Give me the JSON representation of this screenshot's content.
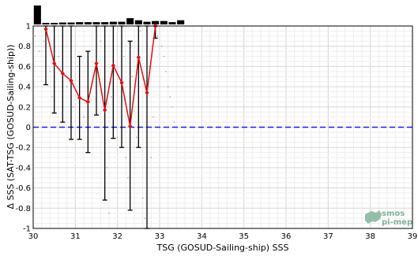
{
  "chart_data": {
    "type": "line",
    "xlabel": "TSG (GOSUD-Sailing-ship) SSS",
    "ylabel": "Δ SSS (SAT-TSG (GOSUD-Sailing-ship))",
    "xlim": [
      30,
      39
    ],
    "ylim": [
      -1,
      1
    ],
    "x_ticks": [
      "30",
      "31",
      "32",
      "33",
      "34",
      "35",
      "36",
      "37",
      "38",
      "39"
    ],
    "y_ticks": [
      "-1",
      "-0.8",
      "-0.6",
      "-0.4",
      "-0.2",
      "0",
      "0.2",
      "0.4",
      "0.6",
      "0.8",
      "1"
    ],
    "grid": true,
    "zero_line": {
      "y": 0,
      "color": "#1a1aff",
      "style": "dashed"
    },
    "series": [
      {
        "type": "line_with_errorbars",
        "color": "#e01010",
        "points": [
          {
            "x": 30.3,
            "y": 0.97,
            "low": 0.42,
            "high": 1.0
          },
          {
            "x": 30.5,
            "y": 0.63,
            "low": 0.14,
            "high": 1.0
          },
          {
            "x": 30.7,
            "y": 0.53,
            "low": 0.05,
            "high": 1.0
          },
          {
            "x": 30.9,
            "y": 0.46,
            "low": -0.12,
            "high": 1.0
          },
          {
            "x": 31.1,
            "y": 0.29,
            "low": -0.12,
            "high": 0.7
          },
          {
            "x": 31.3,
            "y": 0.25,
            "low": -0.25,
            "high": 0.75
          },
          {
            "x": 31.5,
            "y": 0.63,
            "low": 0.12,
            "high": 1.0
          },
          {
            "x": 31.7,
            "y": 0.17,
            "low": -0.72,
            "high": 1.0
          },
          {
            "x": 31.9,
            "y": 0.61,
            "low": -0.11,
            "high": 1.0
          },
          {
            "x": 32.1,
            "y": 0.44,
            "low": -0.2,
            "high": 1.0
          },
          {
            "x": 32.3,
            "y": 0.01,
            "low": -0.82,
            "high": 0.85
          },
          {
            "x": 32.5,
            "y": 0.69,
            "low": -0.2,
            "high": 1.0
          },
          {
            "x": 32.7,
            "y": 0.34,
            "low": -1.0,
            "high": 1.0
          },
          {
            "x": 32.9,
            "y": 1.0,
            "low": 0.88,
            "high": 1.0
          }
        ]
      }
    ],
    "histogram": {
      "color": "#000000",
      "bins": [
        {
          "x": 30.1,
          "count": 1.0
        },
        {
          "x": 30.3,
          "count": 0.08
        },
        {
          "x": 30.5,
          "count": 0.08
        },
        {
          "x": 30.7,
          "count": 0.1
        },
        {
          "x": 30.9,
          "count": 0.1
        },
        {
          "x": 31.1,
          "count": 0.12
        },
        {
          "x": 31.3,
          "count": 0.12
        },
        {
          "x": 31.5,
          "count": 0.12
        },
        {
          "x": 31.7,
          "count": 0.12
        },
        {
          "x": 31.9,
          "count": 0.14
        },
        {
          "x": 32.1,
          "count": 0.14
        },
        {
          "x": 32.3,
          "count": 0.33
        },
        {
          "x": 32.5,
          "count": 0.22
        },
        {
          "x": 32.7,
          "count": 0.14
        },
        {
          "x": 32.9,
          "count": 0.18
        },
        {
          "x": 33.1,
          "count": 0.18
        },
        {
          "x": 33.3,
          "count": 0.12
        },
        {
          "x": 33.5,
          "count": 0.22
        }
      ]
    },
    "scatter": [
      [
        30.05,
        0.9
      ],
      [
        30.15,
        0.75
      ],
      [
        30.25,
        0.85
      ],
      [
        30.4,
        0.55
      ],
      [
        30.45,
        0.3
      ],
      [
        30.6,
        0.7
      ],
      [
        30.8,
        0.4
      ],
      [
        30.95,
        0.2
      ],
      [
        31.05,
        0.6
      ],
      [
        31.2,
        0.1
      ],
      [
        31.4,
        0.45
      ],
      [
        31.6,
        0.85
      ],
      [
        31.75,
        -0.4
      ],
      [
        31.85,
        0.3
      ],
      [
        32.0,
        -0.1
      ],
      [
        32.15,
        0.7
      ],
      [
        32.25,
        -0.5
      ],
      [
        32.35,
        0.5
      ],
      [
        32.45,
        -0.1
      ],
      [
        32.55,
        0.95
      ],
      [
        32.6,
        -0.7
      ],
      [
        32.75,
        0.6
      ],
      [
        32.8,
        -0.3
      ],
      [
        32.85,
        0.1
      ],
      [
        32.95,
        0.9
      ],
      [
        33.05,
        0.8
      ],
      [
        33.1,
        0.7
      ],
      [
        33.15,
        0.55
      ],
      [
        33.2,
        0.4
      ],
      [
        33.25,
        0.3
      ],
      [
        33.3,
        0.2
      ],
      [
        33.35,
        0.05
      ],
      [
        31.8,
        -0.85
      ],
      [
        32.2,
        -0.3
      ],
      [
        32.65,
        -0.9
      ]
    ]
  },
  "logo": {
    "line1": "smos",
    "line2": "pi-mep"
  }
}
